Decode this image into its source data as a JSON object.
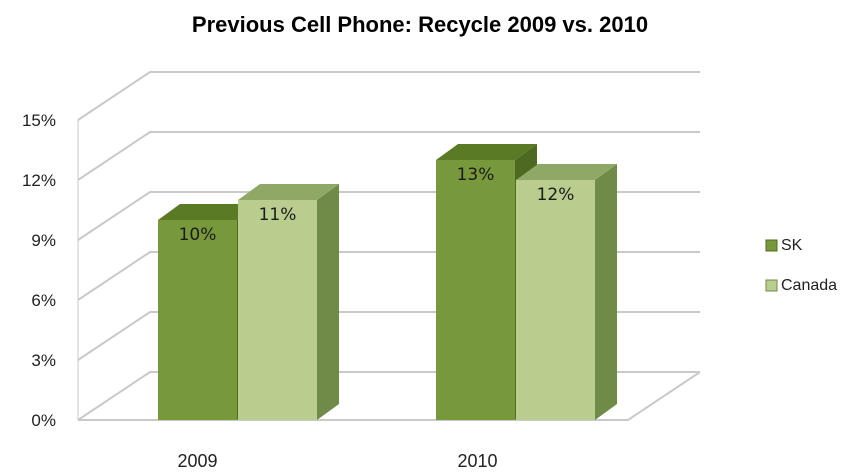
{
  "chart_data": {
    "type": "bar",
    "title": "Previous Cell Phone: Recycle 2009 vs. 2010",
    "categories": [
      "2009",
      "2010"
    ],
    "series": [
      {
        "name": "SK",
        "values": [
          10,
          13
        ],
        "labels": [
          "10%",
          "13%"
        ]
      },
      {
        "name": "Canada",
        "values": [
          11,
          12
        ],
        "labels": [
          "11%",
          "12%"
        ]
      }
    ],
    "xlabel": "",
    "ylabel": "",
    "ylim": [
      0,
      15
    ],
    "yticks": [
      "0%",
      "3%",
      "6%",
      "9%",
      "12%",
      "15%"
    ],
    "grid": true,
    "three_d": true,
    "legend": "right"
  },
  "colors": {
    "SK": {
      "front": "#77993b",
      "top": "#5a7a26",
      "side": "#4e6a20"
    },
    "Canada": {
      "front": "#b9cd8f",
      "top": "#8fa866",
      "side": "#6f8b47"
    },
    "grid": "#c9c9c9"
  }
}
